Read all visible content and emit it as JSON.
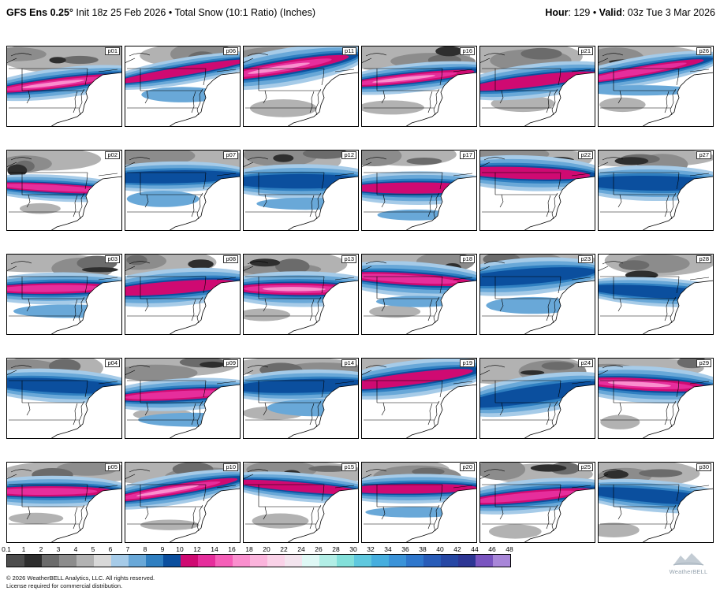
{
  "header": {
    "title_bold": "GFS Ens 0.25°",
    "title_rest": " Init 18z 25 Feb 2026 • Total Snow (10:1 Ratio) (Inches)",
    "hour_label": "Hour",
    "hour_value": ": 129",
    "bullet": " • ",
    "valid_label": "Valid",
    "valid_value": ": 03z Tue 3 Mar 2026"
  },
  "panels": [
    "p01",
    "p06",
    "p11",
    "p16",
    "p21",
    "p26",
    "p02",
    "p07",
    "p12",
    "p17",
    "p22",
    "p27",
    "p03",
    "p08",
    "p13",
    "p18",
    "p23",
    "p28",
    "p04",
    "p09",
    "p14",
    "p19",
    "p24",
    "p29",
    "p05",
    "p10",
    "p15",
    "p20",
    "p25",
    "p30"
  ],
  "colorbar": {
    "ticks": [
      "0.1",
      "1",
      "2",
      "3",
      "4",
      "5",
      "6",
      "7",
      "8",
      "9",
      "10",
      "12",
      "14",
      "16",
      "18",
      "20",
      "22",
      "24",
      "26",
      "28",
      "30",
      "32",
      "34",
      "36",
      "38",
      "40",
      "42",
      "44",
      "46",
      "48"
    ],
    "colors": [
      "#4d4d4d",
      "#2e2e2e",
      "#6b6b6b",
      "#8c8c8c",
      "#b2b2b2",
      "#d8d8d8",
      "#a6cbe8",
      "#69a8d8",
      "#2f7fc1",
      "#0b4f9e",
      "#cf0a72",
      "#e62e9c",
      "#f55fb8",
      "#fa8fce",
      "#fbb4dc",
      "#fad2e8",
      "#f3e4ee",
      "#dff8f5",
      "#b2eee6",
      "#83e0da",
      "#5fc8de",
      "#46aede",
      "#3b93d8",
      "#2f77cc",
      "#285cb8",
      "#2647a4",
      "#2d3694",
      "#7a55c0",
      "#a886d8"
    ]
  },
  "footer": {
    "line1": "© 2026 WeatherBELL Analytics, LLC. All rights reserved.",
    "line2": "License required for commercial distribution."
  },
  "logo": {
    "text": "WeatherBELL"
  }
}
